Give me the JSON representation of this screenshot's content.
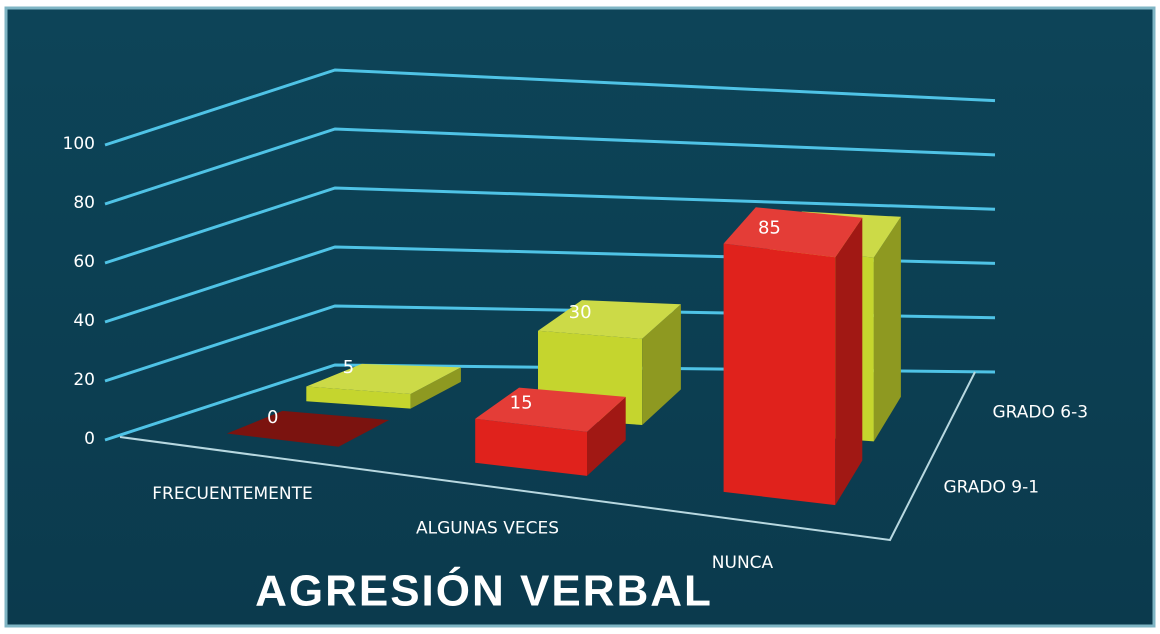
{
  "chart_data": {
    "type": "bar3d",
    "title": "AGRESIÓN VERBAL",
    "categories": [
      "FRECUENTEMENTE",
      "ALGUNAS VECES",
      "NUNCA"
    ],
    "series": [
      {
        "name": "GRADO 9-1",
        "color": "#e0221c",
        "values": [
          0,
          15,
          85
        ]
      },
      {
        "name": "GRADO 6-3",
        "color": "#c5d52e",
        "values": [
          5,
          30,
          65
        ]
      }
    ],
    "ylim": [
      0,
      100
    ],
    "yticks": [
      0,
      20,
      40,
      60,
      80,
      100
    ],
    "grid": true
  }
}
